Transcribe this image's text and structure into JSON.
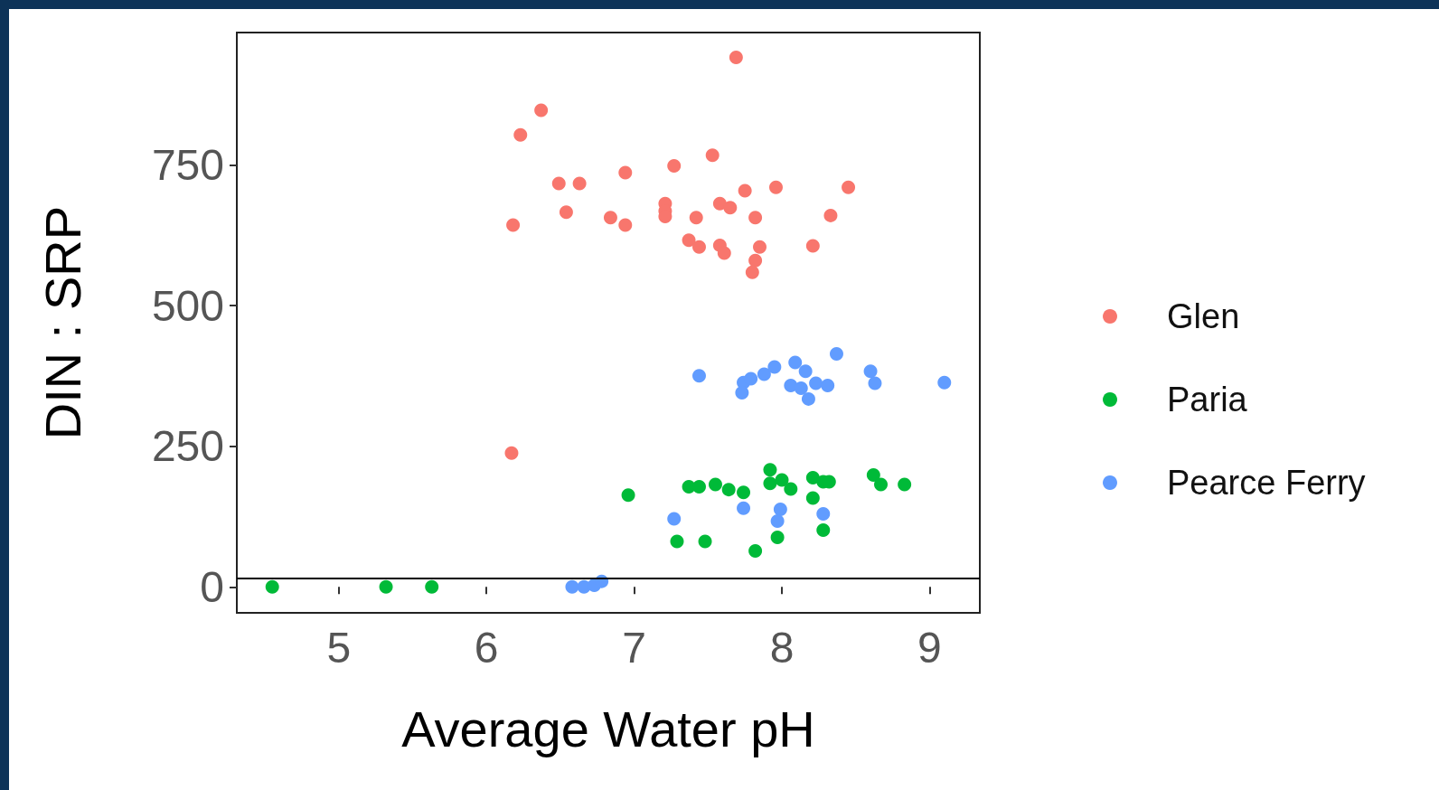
{
  "chart_data": {
    "type": "scatter",
    "xlabel": "Average Water pH",
    "ylabel": "DIN : SRP",
    "xlim": [
      4.31,
      9.34
    ],
    "xticks": [
      5,
      6,
      7,
      8,
      9
    ],
    "ylim": [
      -46,
      985
    ],
    "yticks": [
      0,
      250,
      500,
      750
    ],
    "grid": false,
    "legend": "right",
    "marker": "circle",
    "ref_lines": [
      {
        "axis": "y",
        "value": 16,
        "color": "#000000",
        "line_style": "solid"
      }
    ],
    "series": [
      {
        "name": "Glen",
        "color": "#f8766d",
        "x": [
          7.69,
          6.37,
          6.23,
          6.49,
          6.63,
          6.94,
          7.27,
          7.53,
          6.54,
          6.18,
          6.84,
          6.94,
          7.21,
          7.21,
          7.21,
          7.42,
          7.58,
          7.65,
          7.75,
          7.96,
          7.82,
          8.33,
          8.45,
          7.37,
          7.44,
          7.58,
          7.61,
          7.85,
          7.82,
          7.8,
          8.21,
          6.17
        ],
        "values": [
          941,
          847,
          803,
          717,
          717,
          736,
          748,
          767,
          666,
          643,
          656,
          643,
          681,
          668,
          658,
          656,
          681,
          674,
          704,
          710,
          656,
          660,
          710,
          616,
          604,
          607,
          593,
          604,
          580,
          559,
          606,
          238
        ]
      },
      {
        "name": "Paria",
        "color": "#00ba38",
        "x": [
          4.55,
          5.32,
          5.63,
          6.96,
          7.37,
          7.44,
          7.55,
          7.64,
          7.74,
          7.92,
          7.92,
          8.0,
          8.06,
          8.21,
          8.21,
          8.28,
          8.32,
          8.62,
          8.67,
          8.83,
          7.29,
          7.48,
          7.82,
          7.97,
          8.28
        ],
        "values": [
          0,
          0,
          0,
          163,
          178,
          178,
          182,
          173,
          168,
          208,
          184,
          190,
          174,
          194,
          158,
          187,
          187,
          199,
          182,
          182,
          81,
          81,
          64,
          88,
          101
        ]
      },
      {
        "name": "Pearce Ferry",
        "color": "#619cff",
        "x": [
          7.44,
          7.74,
          7.73,
          7.79,
          7.88,
          7.95,
          8.09,
          8.16,
          8.06,
          8.13,
          8.18,
          8.23,
          8.31,
          8.37,
          8.6,
          8.63,
          9.1,
          7.27,
          7.74,
          7.99,
          7.97,
          8.28,
          6.58,
          6.66,
          6.73,
          6.78
        ],
        "values": [
          375,
          363,
          345,
          370,
          378,
          391,
          399,
          383,
          358,
          353,
          334,
          362,
          358,
          414,
          383,
          362,
          363,
          121,
          140,
          138,
          117,
          130,
          0,
          0,
          3,
          10
        ]
      }
    ]
  }
}
